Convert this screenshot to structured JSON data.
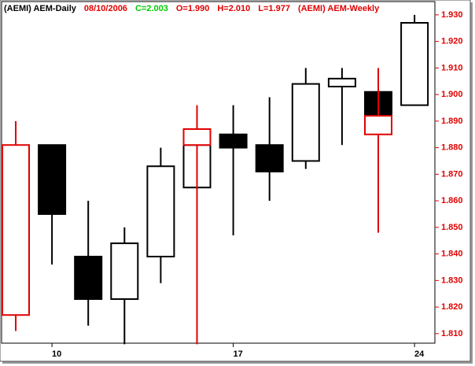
{
  "chart_data": {
    "type": "candlestick",
    "header": [
      {
        "text": "(AEMI) AEM-Daily",
        "color": "#000000"
      },
      {
        "text": "08/10/2006",
        "color": "#e00000"
      },
      {
        "text": "C=2.003",
        "color": "#00cc00"
      },
      {
        "text": "O=1.990",
        "color": "#e00000"
      },
      {
        "text": "H=2.010",
        "color": "#e00000"
      },
      {
        "text": "L=1.977",
        "color": "#e00000"
      },
      {
        "text": "(AEMI) AEM-Weekly",
        "color": "#e00000"
      }
    ],
    "categories": [
      null,
      "10",
      null,
      null,
      null,
      null,
      "17",
      null,
      null,
      null,
      null,
      "24"
    ],
    "series": [
      {
        "name": "(AEMI) AEM-Daily",
        "color": "#000000",
        "hollow": false,
        "open": [
          null,
          1.881,
          1.839,
          1.823,
          1.839,
          1.865,
          1.885,
          1.881,
          1.875,
          1.903,
          1.901,
          1.896
        ],
        "high": [
          null,
          1.881,
          1.86,
          1.85,
          1.88,
          1.881,
          1.896,
          1.899,
          1.91,
          1.91,
          1.901,
          1.93
        ],
        "low": [
          null,
          1.836,
          1.813,
          1.806,
          1.829,
          1.865,
          1.847,
          1.86,
          1.872,
          1.881,
          1.892,
          1.896
        ],
        "close": [
          null,
          1.855,
          1.823,
          1.844,
          1.873,
          1.881,
          1.88,
          1.871,
          1.904,
          1.906,
          1.892,
          1.927
        ]
      },
      {
        "name": "(AEMI) AEM-Weekly",
        "color": "#e00000",
        "hollow": true,
        "open": [
          1.817,
          null,
          null,
          null,
          null,
          1.881,
          null,
          null,
          null,
          null,
          1.885,
          null
        ],
        "high": [
          1.89,
          null,
          null,
          null,
          null,
          1.896,
          null,
          null,
          null,
          null,
          1.91,
          null
        ],
        "low": [
          1.811,
          null,
          null,
          null,
          null,
          1.806,
          null,
          null,
          null,
          null,
          1.848,
          null
        ],
        "close": [
          1.881,
          null,
          null,
          null,
          null,
          1.887,
          null,
          null,
          null,
          null,
          1.892,
          null
        ]
      }
    ],
    "ylim": [
      1.8064,
      1.935
    ],
    "yticks": [
      {
        "value": 1.81,
        "label": "1.810"
      },
      {
        "value": 1.82,
        "label": "1.820"
      },
      {
        "value": 1.83,
        "label": "1.830"
      },
      {
        "value": 1.84,
        "label": "1.840"
      },
      {
        "value": 1.85,
        "label": "1.850"
      },
      {
        "value": 1.86,
        "label": "1.860"
      },
      {
        "value": 1.87,
        "label": "1.870"
      },
      {
        "value": 1.88,
        "label": "1.880"
      },
      {
        "value": 1.89,
        "label": "1.890"
      },
      {
        "value": 1.9,
        "label": "1.900"
      },
      {
        "value": 1.91,
        "label": "1.910"
      },
      {
        "value": 1.92,
        "label": "1.920"
      },
      {
        "value": 1.93,
        "label": "1.930"
      }
    ],
    "axis_color": "#e00000"
  }
}
